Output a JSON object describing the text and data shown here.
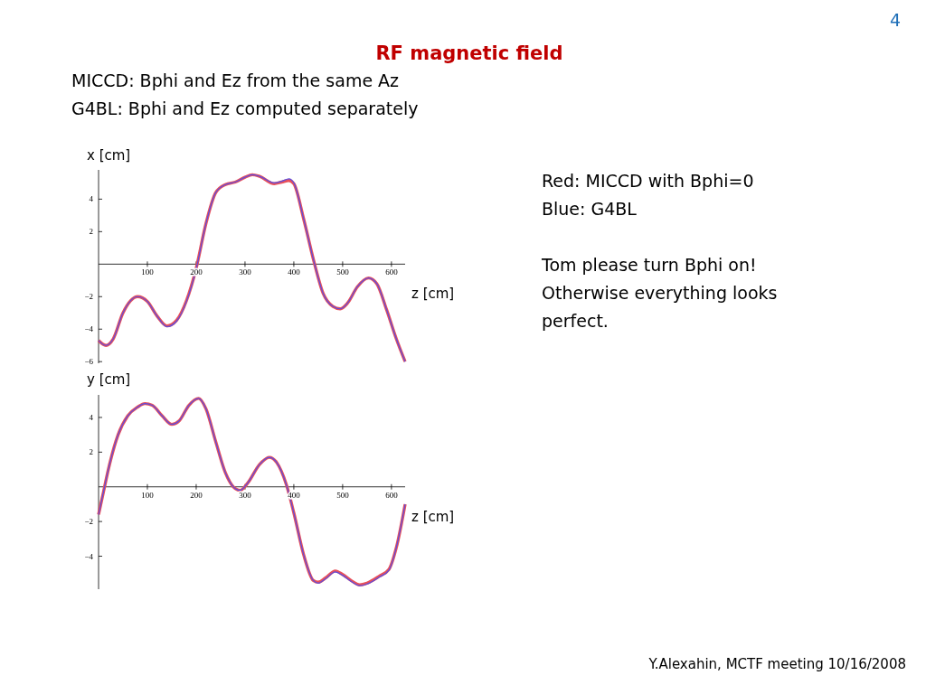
{
  "chart_data": [
    {
      "type": "line",
      "title": "RF magnetic field",
      "subtitle": "MICCD: Bphi and Ez from the same Az\nG4BL: Bphi and Ez computed separately",
      "ylabel": "x [cm]",
      "xlabel": "z [cm]",
      "annotations": [
        "Red: MICCD with Bphi=0",
        "Blue: G4BL",
        "Tom please turn Bphi on! Otherwise everything looks perfect.",
        "4",
        "Y.Alexahin, MCTF meeting 10/16/2008"
      ],
      "xlim": [
        0,
        628
      ],
      "xticks": [
        100,
        200,
        300,
        400,
        500,
        600
      ],
      "ylim": [
        -6.1,
        5.8
      ],
      "yticks": [
        -6,
        -4,
        -2,
        2,
        4
      ],
      "grid": false,
      "legend": false,
      "x": [
        0,
        15,
        30,
        50,
        80,
        100,
        120,
        140,
        160,
        180,
        200,
        220,
        240,
        260,
        280,
        300,
        315,
        330,
        360,
        375,
        390,
        400,
        420,
        440,
        460,
        480,
        495,
        510,
        530,
        553,
        570,
        590,
        610,
        628
      ],
      "series": [
        {
          "color": "#e8505a",
          "values": [
            -4.7,
            -5.0,
            -4.6,
            -3.0,
            -2.0,
            -2.3,
            -3.2,
            -3.8,
            -3.45,
            -2.25,
            -0.25,
            2.5,
            4.4,
            4.9,
            5.05,
            5.35,
            5.5,
            5.4,
            4.95,
            5.05,
            5.15,
            4.95,
            2.8,
            0.3,
            -1.8,
            -2.6,
            -2.75,
            -2.4,
            -1.4,
            -0.85,
            -1.2,
            -2.8,
            -4.6,
            -6.0
          ]
        },
        {
          "color": "#5a4ee0",
          "values": [
            -4.7,
            -5.0,
            -4.6,
            -3.0,
            -2.0,
            -2.3,
            -3.2,
            -3.85,
            -3.5,
            -2.3,
            -0.3,
            2.5,
            4.4,
            4.9,
            5.05,
            5.35,
            5.5,
            5.4,
            5.0,
            5.1,
            5.25,
            5.0,
            2.8,
            0.3,
            -1.8,
            -2.6,
            -2.75,
            -2.4,
            -1.4,
            -0.85,
            -1.2,
            -2.8,
            -4.6,
            -6.0
          ]
        }
      ]
    },
    {
      "type": "line",
      "ylabel": "y [cm]",
      "xlabel": "z [cm]",
      "xlim": [
        0,
        628
      ],
      "xticks": [
        100,
        200,
        300,
        400,
        500,
        600
      ],
      "ylim": [
        -5.9,
        5.3
      ],
      "yticks": [
        -4,
        -2,
        2,
        4
      ],
      "grid": false,
      "legend": false,
      "x": [
        0,
        10,
        20,
        40,
        60,
        80,
        95,
        110,
        130,
        150,
        165,
        185,
        205,
        220,
        240,
        260,
        280,
        290,
        305,
        330,
        350,
        365,
        385,
        400,
        420,
        440,
        450,
        465,
        485,
        500,
        520,
        535,
        550,
        575,
        595,
        610,
        628
      ],
      "series": [
        {
          "color": "#e8505a",
          "values": [
            -1.6,
            -0.3,
            1.0,
            3.0,
            4.1,
            4.6,
            4.8,
            4.7,
            4.1,
            3.6,
            3.8,
            4.7,
            5.1,
            4.5,
            2.6,
            0.8,
            -0.1,
            -0.2,
            0.2,
            1.3,
            1.7,
            1.4,
            0.1,
            -1.5,
            -3.9,
            -5.4,
            -5.5,
            -5.25,
            -4.85,
            -5.05,
            -5.45,
            -5.65,
            -5.55,
            -5.15,
            -4.75,
            -3.5,
            -1.0
          ]
        },
        {
          "color": "#5a4ee0",
          "values": [
            -1.6,
            -0.3,
            1.0,
            3.0,
            4.1,
            4.6,
            4.8,
            4.7,
            4.1,
            3.6,
            3.8,
            4.7,
            5.1,
            4.5,
            2.6,
            0.8,
            -0.1,
            -0.2,
            0.2,
            1.3,
            1.7,
            1.4,
            0.1,
            -1.5,
            -3.9,
            -5.4,
            -5.55,
            -5.3,
            -4.9,
            -5.1,
            -5.5,
            -5.7,
            -5.6,
            -5.2,
            -4.8,
            -3.5,
            -1.0
          ]
        }
      ]
    }
  ]
}
